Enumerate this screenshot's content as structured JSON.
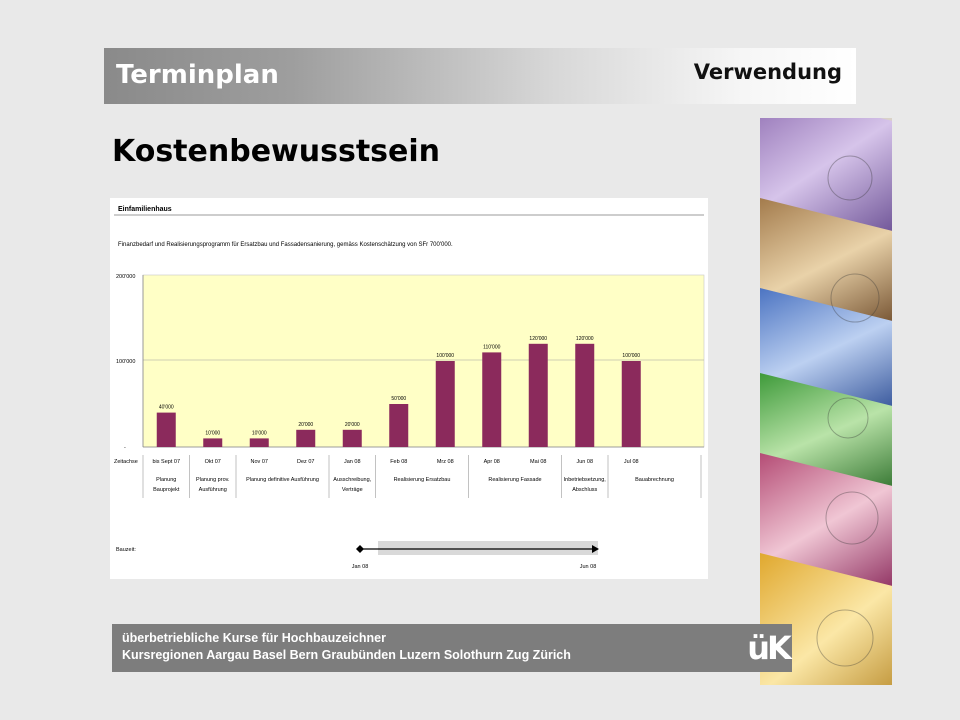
{
  "header": {
    "title": "Terminplan",
    "subtitle": "Verwendung"
  },
  "page_title": "Kostenbewusstsein",
  "footer": {
    "line1": "überbetriebliche Kurse für Hochbauzeichner",
    "line2": "Kursregionen Aargau Basel Bern Graubünden Luzern Solothurn Zug Zürich",
    "logo": "üK"
  },
  "colors": {
    "bar": "#8b2a5c",
    "plot_bg": "#ffffc6",
    "header_text": "#ffffff",
    "footer_bg": "#7d7d7d"
  },
  "chart_data": {
    "type": "bar",
    "title": "Einfamilienhaus",
    "subtitle": "Finanzbedarf und Realisierungsprogramm für Ersatzbau und Fassadensanierung, gemäss Kostenschätzung von SFr 700'000.",
    "xlabel": "Zeitachse",
    "ylim": [
      0,
      200000
    ],
    "y_tick_labels": [
      "-",
      "100'000",
      "200'000"
    ],
    "categories": [
      "bis Sept 07",
      "Okt 07",
      "Nov 07",
      "Dez 07",
      "Jan 08",
      "Feb 08",
      "Mrz 08",
      "Apr 08",
      "Mai 08",
      "Jun 08",
      "Jul 08"
    ],
    "values": [
      40000,
      10000,
      10000,
      20000,
      20000,
      50000,
      100000,
      110000,
      120000,
      120000,
      100000
    ],
    "value_labels": [
      "40'000",
      "10'000",
      "10'000",
      "20'000",
      "20'000",
      "50'000",
      "100'000",
      "110'000",
      "120'000",
      "120'000",
      "100'000"
    ],
    "phases": [
      {
        "lines": [
          "Planung",
          "Bauprojekt"
        ]
      },
      {
        "lines": [
          "Planung prov.",
          "Ausführung"
        ]
      },
      {
        "lines": [
          "Planung definitive Ausführung"
        ]
      },
      {
        "lines": [
          "Ausschreibung,",
          "Verträge"
        ]
      },
      {
        "lines": [
          "Realisierung Ersatzbau"
        ]
      },
      {
        "lines": [
          "Realisierung Fassade"
        ]
      },
      {
        "lines": [
          "Inbetriebsetzung,",
          "Abschluss"
        ]
      },
      {
        "lines": [
          "Bauabrechnung"
        ]
      }
    ],
    "bauzeit": {
      "label": "Bauzeit:",
      "start": "Jan 08",
      "end": "Jun 08"
    },
    "grid": true
  }
}
